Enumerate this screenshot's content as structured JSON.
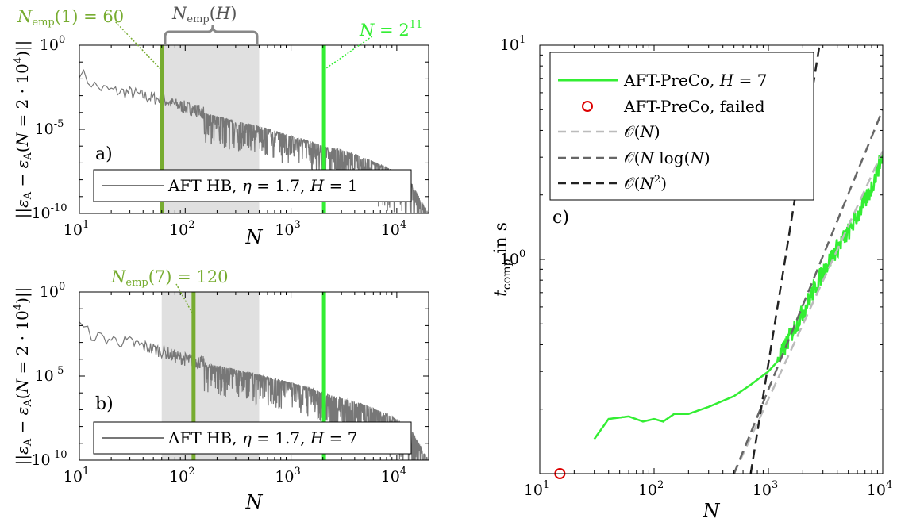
{
  "chart_data": [
    {
      "type": "line",
      "panel_label": "a)",
      "xlabel": "N",
      "ylabel": "||ε_A − ε_A(N = 2·10⁴)||",
      "x_scale": "log",
      "y_scale": "log",
      "xlim": [
        10,
        20000
      ],
      "ylim": [
        1e-10,
        1
      ],
      "x_tick_labels": [
        {
          "base": "10",
          "exp": "1"
        },
        {
          "base": "10",
          "exp": "2"
        },
        {
          "base": "10",
          "exp": "3"
        },
        {
          "base": "10",
          "exp": "4"
        }
      ],
      "y_tick_labels": [
        {
          "base": "10",
          "exp": "0"
        },
        {
          "base": "10",
          "exp": "-5"
        },
        {
          "base": "10",
          "exp": "-10"
        }
      ],
      "shaded_region": {
        "x_range": [
          60,
          500
        ],
        "color": "#e0e0e0"
      },
      "vertical_lines": [
        {
          "x": 60,
          "color": "#77ac30",
          "label": "N_emp(1) = 60"
        },
        {
          "x": 2048,
          "color": "#33ee33",
          "label": "N = 2^11"
        }
      ],
      "bracket_label": "N_emp(H)",
      "legend": {
        "location": "bottom-right",
        "entries": [
          "AFT HB, η = 1.7, H = 1"
        ]
      },
      "series": [
        {
          "name": "AFT HB, η = 1.7, H = 1",
          "color": "#777777",
          "x": [
            10,
            12,
            15,
            20,
            30,
            45,
            60,
            80,
            100,
            150,
            200,
            300,
            500,
            700,
            1000,
            1500,
            2000,
            3000,
            5000,
            7000,
            10000,
            14000,
            20000
          ],
          "y": [
            0.03,
            0.008,
            0.003,
            0.002,
            0.0015,
            0.0008,
            0.0006,
            0.0003,
            0.0002,
            0.0001,
            6e-05,
            3e-05,
            1.5e-05,
            8e-06,
            4e-06,
            2e-06,
            1e-06,
            6e-07,
            2e-07,
            8e-08,
            3e-08,
            5e-09,
            1e-10
          ]
        }
      ]
    },
    {
      "type": "line",
      "panel_label": "b)",
      "xlabel": "N",
      "ylabel": "||ε_A − ε_A(N = 2·10⁴)||",
      "x_scale": "log",
      "y_scale": "log",
      "xlim": [
        10,
        20000
      ],
      "ylim": [
        1e-10,
        1
      ],
      "x_tick_labels": [
        {
          "base": "10",
          "exp": "1"
        },
        {
          "base": "10",
          "exp": "2"
        },
        {
          "base": "10",
          "exp": "3"
        },
        {
          "base": "10",
          "exp": "4"
        }
      ],
      "y_tick_labels": [
        {
          "base": "10",
          "exp": "0"
        },
        {
          "base": "10",
          "exp": "-5"
        },
        {
          "base": "10",
          "exp": "-10"
        }
      ],
      "shaded_region": {
        "x_range": [
          60,
          500
        ],
        "color": "#e0e0e0"
      },
      "vertical_lines": [
        {
          "x": 120,
          "color": "#77ac30",
          "label": "N_emp(7) = 120"
        },
        {
          "x": 2048,
          "color": "#33ee33"
        }
      ],
      "legend": {
        "location": "bottom-right",
        "entries": [
          "AFT HB, η = 1.7, H = 7"
        ]
      },
      "series": [
        {
          "name": "AFT HB, η = 1.7, H = 7",
          "color": "#777777",
          "x": [
            10,
            12,
            15,
            20,
            30,
            45,
            60,
            80,
            100,
            150,
            200,
            300,
            500,
            700,
            1000,
            1500,
            2000,
            3000,
            5000,
            7000,
            10000,
            14000,
            20000
          ],
          "y": [
            0.01,
            0.004,
            0.002,
            0.0015,
            0.001,
            0.0005,
            0.0003,
            0.00015,
            0.0001,
            6e-05,
            4e-05,
            2.5e-05,
            1.2e-05,
            7e-06,
            4e-06,
            2e-06,
            1e-06,
            5e-07,
            2e-07,
            8e-08,
            3e-08,
            5e-09,
            1e-10
          ]
        }
      ]
    },
    {
      "type": "line",
      "panel_label": "c)",
      "xlabel": "N",
      "ylabel": "t_comp in s",
      "x_scale": "log",
      "y_scale": "log",
      "xlim": [
        10,
        10000
      ],
      "ylim": [
        0.1,
        10
      ],
      "x_tick_labels": [
        {
          "base": "10",
          "exp": "1"
        },
        {
          "base": "10",
          "exp": "2"
        },
        {
          "base": "10",
          "exp": "3"
        },
        {
          "base": "10",
          "exp": "4"
        }
      ],
      "y_tick_labels": [
        {
          "base": "10",
          "exp": "1"
        },
        {
          "base": "10",
          "exp": "0"
        }
      ],
      "legend": {
        "location": "top-left",
        "entries": [
          "AFT-PreCo, H = 7",
          "AFT-PreCo, failed",
          "O(N)",
          "O(N log(N)",
          "O(N²)"
        ]
      },
      "series": [
        {
          "name": "AFT-PreCo, H = 7",
          "color": "#33ee33",
          "style": "solid",
          "x": [
            30,
            40,
            60,
            80,
            100,
            120,
            150,
            200,
            300,
            500,
            700,
            1000,
            1300,
            1600,
            2000,
            2500,
            3000,
            4000,
            5000,
            6000,
            7000,
            8000,
            10000
          ],
          "y": [
            0.145,
            0.18,
            0.185,
            0.175,
            0.18,
            0.175,
            0.19,
            0.19,
            0.205,
            0.23,
            0.26,
            0.3,
            0.35,
            0.44,
            0.55,
            0.7,
            0.85,
            1.1,
            1.3,
            1.55,
            1.8,
            2.1,
            3.0
          ]
        },
        {
          "name": "AFT-PreCo, failed",
          "color": "#dd0000",
          "style": "marker",
          "x": [
            15
          ],
          "y": [
            0.1
          ]
        },
        {
          "name": "O(N)",
          "color": "#bbbbbb",
          "style": "dashed",
          "x": [
            500,
            10000
          ],
          "y": [
            0.1,
            3.2
          ]
        },
        {
          "name": "O(N log(N)",
          "color": "#666666",
          "style": "dashed",
          "x": [
            500,
            10000
          ],
          "y": [
            0.1,
            5.0
          ]
        },
        {
          "name": "O(N²)",
          "color": "#222222",
          "style": "dashed",
          "x": [
            700,
            2800
          ],
          "y": [
            0.1,
            10
          ]
        }
      ]
    }
  ]
}
